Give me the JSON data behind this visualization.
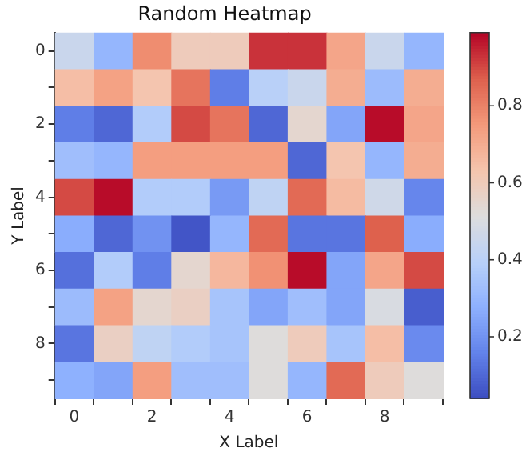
{
  "chart_data": {
    "type": "heatmap",
    "title": "Random Heatmap",
    "xlabel": "X Label",
    "ylabel": "Y Label",
    "categories": [
      "0",
      null,
      "2",
      null,
      "4",
      null,
      "6",
      null,
      "8",
      null
    ],
    "y_categories": [
      "0",
      null,
      "2",
      null,
      "4",
      null,
      "6",
      null,
      "8",
      null
    ],
    "cells": [
      [
        0.45,
        0.3,
        0.78,
        0.6,
        0.6,
        0.93,
        0.93,
        0.72,
        0.45,
        0.3
      ],
      [
        0.65,
        0.73,
        0.63,
        0.83,
        0.15,
        0.4,
        0.45,
        0.7,
        0.32,
        0.7
      ],
      [
        0.15,
        0.1,
        0.38,
        0.9,
        0.83,
        0.1,
        0.55,
        0.25,
        0.98,
        0.72
      ],
      [
        0.33,
        0.3,
        0.74,
        0.74,
        0.74,
        0.74,
        0.1,
        0.63,
        0.3,
        0.7
      ],
      [
        0.9,
        0.98,
        0.38,
        0.38,
        0.22,
        0.42,
        0.85,
        0.66,
        0.47,
        0.17
      ],
      [
        0.27,
        0.1,
        0.2,
        0.06,
        0.3,
        0.85,
        0.13,
        0.13,
        0.87,
        0.27
      ],
      [
        0.12,
        0.38,
        0.15,
        0.55,
        0.67,
        0.77,
        0.98,
        0.25,
        0.72,
        0.9
      ],
      [
        0.32,
        0.73,
        0.55,
        0.58,
        0.35,
        0.25,
        0.33,
        0.25,
        0.5,
        0.08
      ],
      [
        0.13,
        0.58,
        0.42,
        0.38,
        0.35,
        0.52,
        0.6,
        0.35,
        0.65,
        0.18
      ],
      [
        0.28,
        0.25,
        0.74,
        0.33,
        0.33,
        0.52,
        0.3,
        0.85,
        0.6,
        0.52
      ]
    ],
    "clim": [
      0.04,
      0.99
    ],
    "cticks": [
      0.2,
      0.4,
      0.6,
      0.8
    ]
  }
}
